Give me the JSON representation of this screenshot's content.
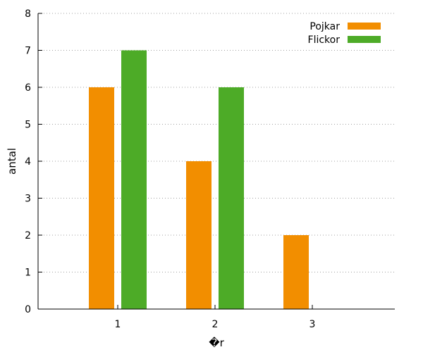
{
  "chart_data": {
    "type": "bar",
    "title": "",
    "xlabel": "�r",
    "ylabel": "antal",
    "categories": [
      "1",
      "2",
      "3"
    ],
    "series": [
      {
        "name": "Pojkar",
        "values": [
          6,
          4,
          2
        ],
        "color": "#f28e00"
      },
      {
        "name": "Flickor",
        "values": [
          7,
          6,
          0
        ],
        "color": "#4dab27"
      }
    ],
    "ylim": [
      0,
      8
    ],
    "yticks": [
      0,
      1,
      2,
      3,
      4,
      5,
      6,
      7,
      8
    ],
    "grid": true,
    "legend_position": "top-right"
  }
}
